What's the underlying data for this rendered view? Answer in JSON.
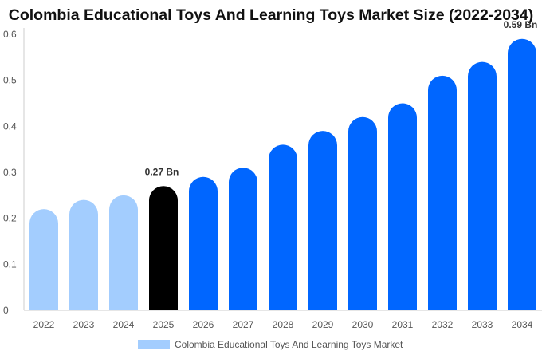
{
  "chart_data": {
    "type": "bar",
    "title": "Colombia Educational Toys And Learning Toys Market Size (2022-2034)",
    "categories": [
      "2022",
      "2023",
      "2024",
      "2025",
      "2026",
      "2027",
      "2028",
      "2029",
      "2030",
      "2031",
      "2032",
      "2033",
      "2034"
    ],
    "series": [
      {
        "name": "Colombia Educational Toys And Learning Toys Market",
        "values": [
          0.22,
          0.24,
          0.25,
          0.27,
          0.29,
          0.31,
          0.36,
          0.39,
          0.42,
          0.45,
          0.51,
          0.54,
          0.59
        ]
      }
    ],
    "ylim": [
      0,
      0.6
    ],
    "yticks": [
      "0",
      "0.1",
      "0.2",
      "0.3",
      "0.4",
      "0.5",
      "0.6"
    ],
    "data_labels": [
      {
        "category": "2025",
        "text": "0.27 Bn"
      },
      {
        "category": "2034",
        "text": "0.59 Bn"
      }
    ],
    "bar_colors": {
      "historical": "#a3cdfe",
      "current": "#000000",
      "forecast": "#0066ff"
    },
    "historical_categories": [
      "2022",
      "2023",
      "2024"
    ],
    "current_category": "2025",
    "grid": false,
    "legend_position": "bottom",
    "legend": [
      {
        "label": "Colombia Educational Toys And Learning Toys Market",
        "color": "#a3cdfe"
      }
    ]
  }
}
